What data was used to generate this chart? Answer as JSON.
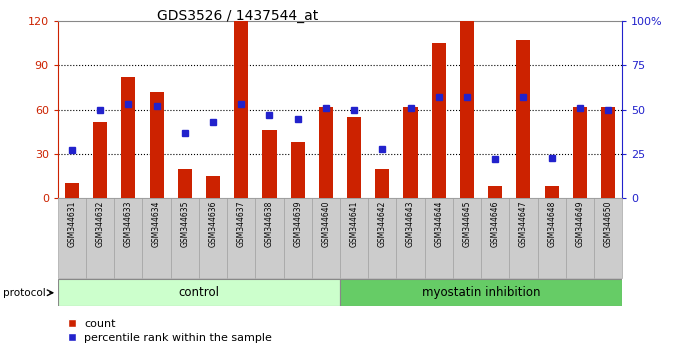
{
  "title": "GDS3526 / 1437544_at",
  "samples": [
    "GSM344631",
    "GSM344632",
    "GSM344633",
    "GSM344634",
    "GSM344635",
    "GSM344636",
    "GSM344637",
    "GSM344638",
    "GSM344639",
    "GSM344640",
    "GSM344641",
    "GSM344642",
    "GSM344643",
    "GSM344644",
    "GSM344645",
    "GSM344646",
    "GSM344647",
    "GSM344648",
    "GSM344649",
    "GSM344650"
  ],
  "counts": [
    10,
    52,
    82,
    72,
    20,
    15,
    120,
    46,
    38,
    62,
    55,
    20,
    62,
    105,
    120,
    8,
    107,
    8,
    62,
    62
  ],
  "percentiles": [
    27,
    50,
    53,
    52,
    37,
    43,
    53,
    47,
    45,
    51,
    50,
    28,
    51,
    57,
    57,
    22,
    57,
    23,
    51,
    50
  ],
  "bar_color": "#CC2200",
  "dot_color": "#2222CC",
  "left_yticks": [
    0,
    30,
    60,
    90,
    120
  ],
  "right_yticks": [
    0,
    25,
    50,
    75,
    100
  ],
  "right_ylabels": [
    "0",
    "25",
    "50",
    "75",
    "100%"
  ],
  "ylim": [
    0,
    120
  ],
  "control_count": 10,
  "myostatin_count": 10,
  "control_label": "control",
  "myostatin_label": "myostatin inhibition",
  "protocol_label": "protocol",
  "legend_count_label": "count",
  "legend_pct_label": "percentile rank within the sample",
  "bg_color_plot": "#FFFFFF",
  "bg_color_xtick": "#CCCCCC",
  "control_bg": "#CCFFCC",
  "myostatin_bg": "#66CC66",
  "bar_width": 0.5,
  "grid_yticks": [
    30,
    60,
    90
  ]
}
